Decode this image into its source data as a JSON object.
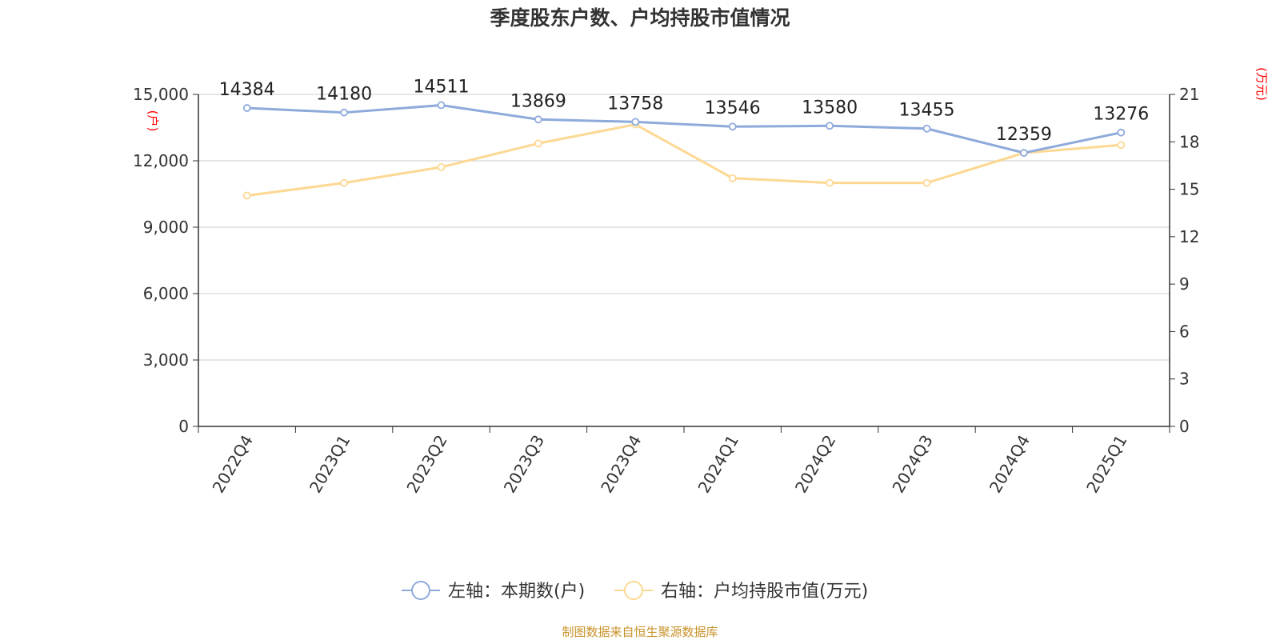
{
  "chart_data": {
    "type": "line",
    "title": "季度股东户数、户均持股市值情况",
    "categories": [
      "2022Q4",
      "2023Q1",
      "2023Q2",
      "2023Q3",
      "2023Q4",
      "2024Q1",
      "2024Q2",
      "2024Q3",
      "2024Q4",
      "2025Q1"
    ],
    "left_axis": {
      "unit_label": "(户)",
      "ylim": [
        0,
        15000
      ],
      "ticks": [
        0,
        3000,
        6000,
        9000,
        12000,
        15000
      ],
      "tick_labels": [
        "0",
        "3,000",
        "6,000",
        "9,000",
        "12,000",
        "15,000"
      ]
    },
    "right_axis": {
      "unit_label": "(万元)",
      "ylim": [
        0,
        21
      ],
      "ticks": [
        0,
        3,
        6,
        9,
        12,
        15,
        18,
        21
      ],
      "tick_labels": [
        "0",
        "3",
        "6",
        "9",
        "12",
        "15",
        "18",
        "21"
      ]
    },
    "grid": true,
    "legend_position": "bottom",
    "series": [
      {
        "name": "左轴：本期数(户)",
        "axis": "left",
        "color": "#8eaadb",
        "values": [
          14384,
          14180,
          14511,
          13869,
          13758,
          13546,
          13580,
          13455,
          12359,
          13276
        ],
        "data_labels": [
          "14384",
          "14180",
          "14511",
          "13869",
          "13758",
          "13546",
          "13580",
          "13455",
          "12359",
          "13276"
        ]
      },
      {
        "name": "右轴：户均持股市值(万元)",
        "axis": "right",
        "color": "#fdd893",
        "values": [
          14.6,
          15.4,
          16.4,
          17.9,
          19.1,
          15.7,
          15.4,
          15.4,
          17.3,
          17.8
        ]
      }
    ]
  },
  "source_text": "制图数据来自恒生聚源数据库",
  "colors": {
    "unit_label": "#ff0000",
    "source_text": "#c8922a",
    "gridline": "#cccccc",
    "axis": "#333333",
    "text": "#333333"
  }
}
